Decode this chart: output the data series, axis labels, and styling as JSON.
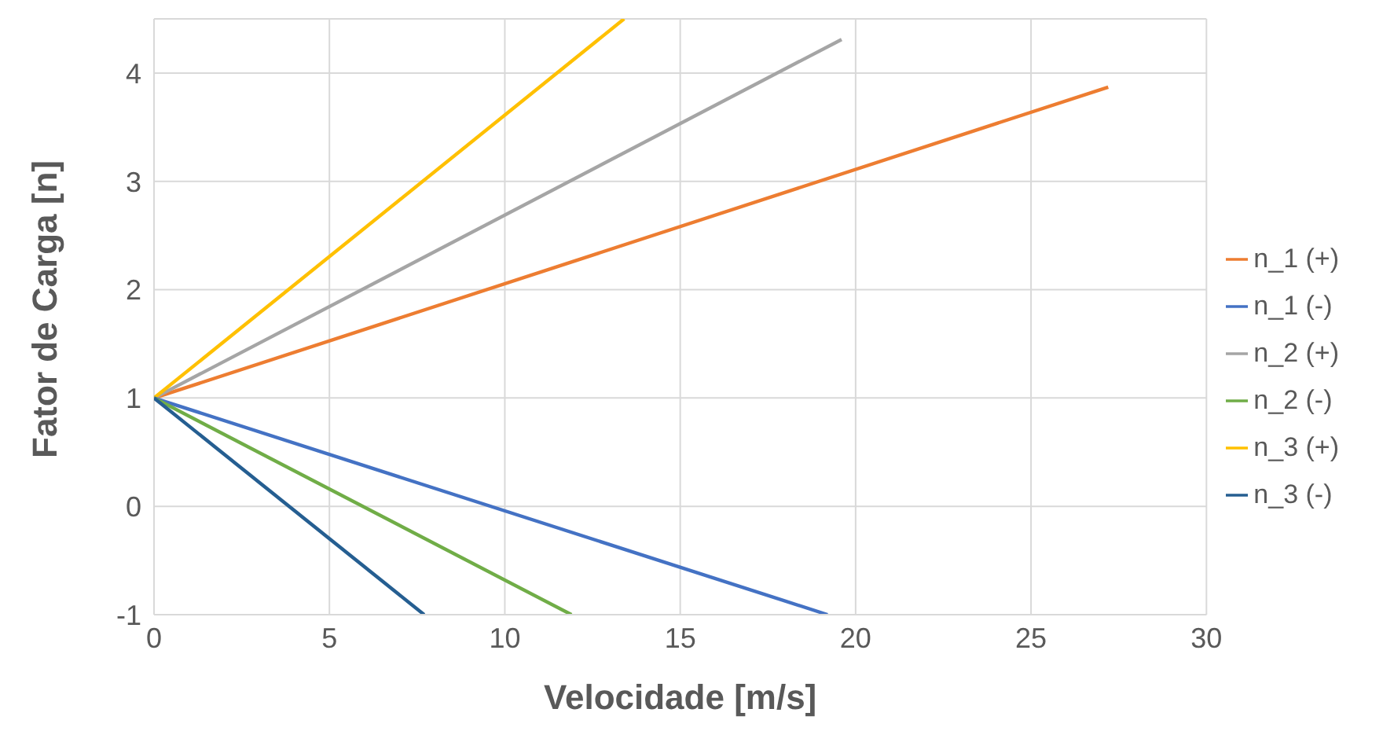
{
  "chart_data": {
    "type": "line",
    "xlabel": "Velocidade [m/s]",
    "ylabel": "Fator de Carga [n]",
    "xlim": [
      0,
      30
    ],
    "xticks": [
      0,
      5,
      10,
      15,
      20,
      25,
      30
    ],
    "ylim": [
      -1,
      4.5
    ],
    "yticks": [
      -1,
      0,
      1,
      2,
      3,
      4
    ],
    "grid": true,
    "legend": "right",
    "marker": "none",
    "line_style": "solid",
    "series": [
      {
        "name": "n_1 (+)",
        "color": "#ed7d31",
        "x": [
          0,
          27.2
        ],
        "values": [
          1,
          3.87
        ]
      },
      {
        "name": "n_2 (+)",
        "color": "#a5a5a5",
        "x": [
          0,
          19.6
        ],
        "values": [
          1,
          4.31
        ]
      },
      {
        "name": "n_3 (+)",
        "color": "#ffc000",
        "x": [
          0,
          13.4
        ],
        "values": [
          1,
          4.5
        ]
      },
      {
        "name": "n_1 (-)",
        "color": "#4472c4",
        "x": [
          0,
          19.2
        ],
        "values": [
          1,
          -1
        ]
      },
      {
        "name": "n_2 (-)",
        "color": "#70ad47",
        "x": [
          0,
          11.9
        ],
        "values": [
          1,
          -1
        ]
      },
      {
        "name": "n_3 (-)",
        "color": "#255e91",
        "x": [
          0,
          7.7
        ],
        "values": [
          1,
          -1
        ]
      }
    ]
  }
}
